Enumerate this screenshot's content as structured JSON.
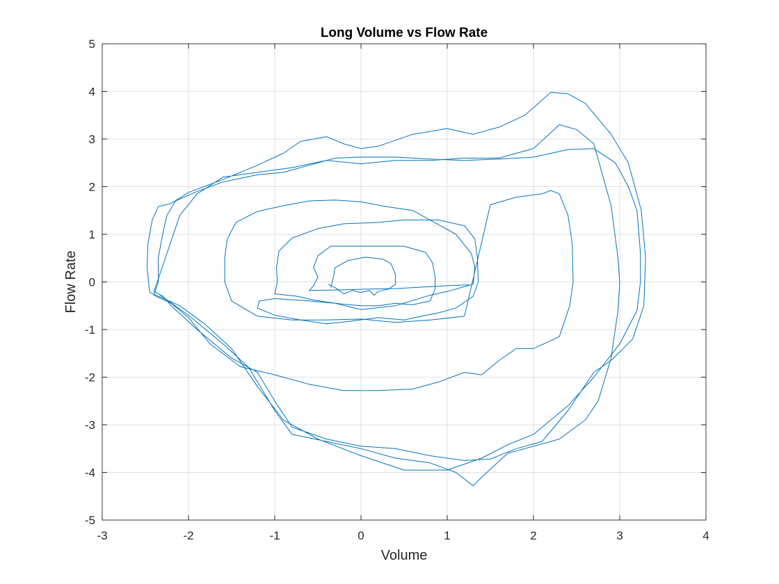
{
  "chart_data": {
    "type": "line",
    "title": "Long Volume vs Flow Rate",
    "xlabel": "Volume",
    "ylabel": "Flow Rate",
    "xlim": [
      -3,
      4
    ],
    "ylim": [
      -5,
      5
    ],
    "xticks": [
      -3,
      -2,
      -1,
      0,
      1,
      2,
      3,
      4
    ],
    "yticks": [
      5,
      4,
      3,
      2,
      1,
      0,
      -1,
      -2,
      -3,
      -4,
      -5
    ],
    "xtick_labels": [
      "-3",
      "-2",
      "-1",
      "0",
      "1",
      "2",
      "3",
      "4"
    ],
    "ytick_labels": [
      "5",
      "4",
      "3",
      "2",
      "1",
      "0",
      "-1",
      "-2",
      "-3",
      "-4",
      "-5"
    ],
    "grid": true,
    "legend": "none",
    "line_color": "#0072BD",
    "series": [
      {
        "points": [
          [
            1.25,
            -0.06
          ],
          [
            1.0,
            -0.08
          ],
          [
            0.7,
            -0.11
          ],
          [
            0.4,
            -0.14
          ],
          [
            0.1,
            -0.15
          ],
          [
            -0.3,
            -0.17
          ],
          [
            -0.6,
            -0.18
          ],
          [
            -0.55,
            -0.08
          ],
          [
            -0.5,
            0.1
          ],
          [
            -0.55,
            0.3
          ],
          [
            -0.5,
            0.55
          ],
          [
            -0.35,
            0.75
          ],
          [
            -0.1,
            0.75
          ],
          [
            0.2,
            0.75
          ],
          [
            0.5,
            0.75
          ],
          [
            0.75,
            0.62
          ],
          [
            0.83,
            0.4
          ],
          [
            0.86,
            0.1
          ],
          [
            0.86,
            -0.15
          ],
          [
            0.8,
            -0.4
          ],
          [
            0.6,
            -0.48
          ],
          [
            0.4,
            -0.45
          ],
          [
            0.2,
            -0.5
          ],
          [
            0.0,
            -0.5
          ],
          [
            -0.3,
            -0.45
          ],
          [
            -0.55,
            -0.38
          ],
          [
            -0.75,
            -0.3
          ],
          [
            -1.0,
            -0.25
          ],
          [
            -0.97,
            0.0
          ],
          [
            -0.98,
            0.3
          ],
          [
            -0.95,
            0.65
          ],
          [
            -0.8,
            0.92
          ],
          [
            -0.5,
            1.12
          ],
          [
            -0.2,
            1.22
          ],
          [
            0.2,
            1.25
          ],
          [
            0.5,
            1.3
          ],
          [
            0.9,
            1.3
          ],
          [
            1.2,
            1.18
          ],
          [
            1.32,
            0.9
          ],
          [
            1.35,
            0.5
          ],
          [
            1.36,
            0.0
          ],
          [
            1.3,
            -0.3
          ],
          [
            1.1,
            -0.55
          ],
          [
            0.9,
            -0.65
          ],
          [
            0.7,
            -0.72
          ],
          [
            0.5,
            -0.8
          ],
          [
            0.2,
            -0.75
          ],
          [
            -0.1,
            -0.82
          ],
          [
            -0.4,
            -0.88
          ],
          [
            -0.7,
            -0.8
          ],
          [
            -1.0,
            -0.7
          ],
          [
            -1.2,
            -0.55
          ],
          [
            -1.18,
            -0.4
          ],
          [
            -1.0,
            -0.35
          ],
          [
            -0.6,
            -0.4
          ],
          [
            -0.3,
            -0.45
          ],
          [
            0.0,
            -0.58
          ],
          [
            0.4,
            -0.5
          ],
          [
            0.8,
            -0.28
          ],
          [
            1.0,
            -0.2
          ],
          [
            1.3,
            -0.05
          ],
          [
            1.32,
            0.3
          ],
          [
            1.28,
            0.6
          ],
          [
            1.1,
            1.0
          ],
          [
            0.9,
            1.2
          ],
          [
            0.6,
            1.5
          ],
          [
            0.3,
            1.58
          ],
          [
            0.0,
            1.68
          ],
          [
            -0.3,
            1.72
          ],
          [
            -0.6,
            1.7
          ],
          [
            -0.9,
            1.6
          ],
          [
            -1.2,
            1.48
          ],
          [
            -1.45,
            1.25
          ],
          [
            -1.55,
            0.9
          ],
          [
            -1.58,
            0.5
          ],
          [
            -1.58,
            0.0
          ],
          [
            -1.5,
            -0.4
          ],
          [
            -1.2,
            -0.72
          ],
          [
            -0.8,
            -0.8
          ],
          [
            -0.4,
            -0.8
          ],
          [
            0.0,
            -0.78
          ],
          [
            0.4,
            -0.85
          ],
          [
            0.8,
            -0.8
          ],
          [
            1.2,
            -0.72
          ],
          [
            1.5,
            1.62
          ],
          [
            1.8,
            1.78
          ],
          [
            2.1,
            1.85
          ],
          [
            2.2,
            1.92
          ],
          [
            2.3,
            1.85
          ],
          [
            2.4,
            1.4
          ],
          [
            2.45,
            0.8
          ],
          [
            2.46,
            0.0
          ],
          [
            2.42,
            -0.5
          ],
          [
            2.3,
            -1.15
          ],
          [
            2.0,
            -1.4
          ],
          [
            1.8,
            -1.4
          ],
          [
            1.6,
            -1.65
          ],
          [
            1.4,
            -1.95
          ],
          [
            1.2,
            -1.9
          ],
          [
            0.9,
            -2.1
          ],
          [
            0.6,
            -2.25
          ],
          [
            0.2,
            -2.28
          ],
          [
            -0.2,
            -2.28
          ],
          [
            -0.6,
            -2.15
          ],
          [
            -1.0,
            -1.95
          ],
          [
            -1.4,
            -1.78
          ],
          [
            -1.75,
            -1.3
          ],
          [
            -2.0,
            -0.75
          ],
          [
            -2.2,
            -0.45
          ],
          [
            -2.4,
            -0.28
          ],
          [
            -2.35,
            0.0
          ],
          [
            -2.35,
            0.5
          ],
          [
            -2.3,
            1.0
          ],
          [
            -2.25,
            1.4
          ],
          [
            -2.15,
            1.7
          ],
          [
            -1.9,
            1.9
          ],
          [
            -1.6,
            2.1
          ],
          [
            -1.2,
            2.25
          ],
          [
            -0.9,
            2.3
          ],
          [
            -0.6,
            2.45
          ],
          [
            -0.3,
            2.6
          ],
          [
            0.0,
            2.62
          ],
          [
            0.4,
            2.62
          ],
          [
            0.8,
            2.58
          ],
          [
            1.2,
            2.55
          ],
          [
            1.6,
            2.58
          ],
          [
            2.0,
            2.62
          ],
          [
            2.4,
            2.78
          ],
          [
            2.7,
            2.8
          ],
          [
            2.95,
            2.5
          ],
          [
            3.1,
            2.0
          ],
          [
            3.2,
            1.5
          ],
          [
            3.24,
            0.6
          ],
          [
            3.24,
            0.0
          ],
          [
            3.2,
            -0.6
          ],
          [
            3.0,
            -1.3
          ],
          [
            2.7,
            -2.0
          ],
          [
            2.4,
            -2.6
          ],
          [
            2.0,
            -3.2
          ],
          [
            1.7,
            -3.42
          ],
          [
            1.4,
            -3.7
          ],
          [
            1.0,
            -3.95
          ],
          [
            0.5,
            -3.95
          ],
          [
            0.0,
            -3.65
          ],
          [
            -0.5,
            -3.3
          ],
          [
            -0.9,
            -2.9
          ],
          [
            -1.2,
            -2.2
          ],
          [
            -1.5,
            -1.4
          ],
          [
            -1.8,
            -0.9
          ],
          [
            -2.1,
            -0.5
          ],
          [
            -2.45,
            -0.22
          ],
          [
            -2.48,
            0.3
          ],
          [
            -2.47,
            0.8
          ],
          [
            -2.42,
            1.3
          ],
          [
            -2.35,
            1.58
          ],
          [
            -2.2,
            1.65
          ],
          [
            -2.0,
            1.88
          ],
          [
            -1.6,
            2.15
          ],
          [
            -1.2,
            2.45
          ],
          [
            -0.9,
            2.7
          ],
          [
            -0.7,
            2.95
          ],
          [
            -0.4,
            3.05
          ],
          [
            -0.2,
            2.9
          ],
          [
            0.0,
            2.8
          ],
          [
            0.2,
            2.85
          ],
          [
            0.6,
            3.1
          ],
          [
            1.0,
            3.22
          ],
          [
            1.3,
            3.1
          ],
          [
            1.6,
            3.25
          ],
          [
            1.9,
            3.5
          ],
          [
            2.2,
            3.98
          ],
          [
            2.4,
            3.95
          ],
          [
            2.6,
            3.75
          ],
          [
            2.9,
            3.1
          ],
          [
            3.1,
            2.5
          ],
          [
            3.25,
            1.5
          ],
          [
            3.3,
            0.5
          ],
          [
            3.28,
            -0.5
          ],
          [
            3.15,
            -1.2
          ],
          [
            2.9,
            -1.65
          ],
          [
            2.7,
            -1.9
          ],
          [
            2.4,
            -2.7
          ],
          [
            2.1,
            -3.35
          ],
          [
            1.8,
            -3.5
          ],
          [
            1.5,
            -3.72
          ],
          [
            1.2,
            -3.75
          ],
          [
            0.8,
            -3.65
          ],
          [
            0.4,
            -3.5
          ],
          [
            0.0,
            -3.45
          ],
          [
            -0.4,
            -3.3
          ],
          [
            -0.8,
            -3.05
          ],
          [
            -1.0,
            -2.5
          ],
          [
            -1.2,
            -1.9
          ],
          [
            -1.5,
            -1.6
          ],
          [
            -1.9,
            -1.0
          ],
          [
            -2.2,
            -0.5
          ],
          [
            -2.3,
            -0.3
          ],
          [
            -2.4,
            -0.2
          ],
          [
            -2.25,
            0.6
          ],
          [
            -2.1,
            1.4
          ],
          [
            -1.9,
            1.85
          ],
          [
            -1.6,
            2.2
          ],
          [
            -1.2,
            2.3
          ],
          [
            -0.8,
            2.4
          ],
          [
            -0.4,
            2.55
          ],
          [
            0.0,
            2.48
          ],
          [
            0.4,
            2.55
          ],
          [
            0.8,
            2.55
          ],
          [
            1.2,
            2.6
          ],
          [
            1.6,
            2.6
          ],
          [
            2.0,
            2.8
          ],
          [
            2.3,
            3.3
          ],
          [
            2.5,
            3.2
          ],
          [
            2.7,
            2.9
          ],
          [
            2.9,
            1.6
          ],
          [
            2.98,
            0.5
          ],
          [
            3.0,
            0.0
          ],
          [
            2.98,
            -0.6
          ],
          [
            2.9,
            -1.6
          ],
          [
            2.75,
            -2.5
          ],
          [
            2.6,
            -2.9
          ],
          [
            2.3,
            -3.3
          ],
          [
            2.0,
            -3.45
          ],
          [
            1.7,
            -3.6
          ],
          [
            1.4,
            -4.1
          ],
          [
            1.3,
            -4.28
          ],
          [
            1.1,
            -4.0
          ],
          [
            0.8,
            -3.8
          ],
          [
            0.4,
            -3.7
          ],
          [
            0.0,
            -3.5
          ],
          [
            -0.4,
            -3.35
          ],
          [
            -0.8,
            -3.2
          ],
          [
            -1.0,
            -2.7
          ],
          [
            -1.3,
            -1.8
          ],
          [
            -1.6,
            -1.3
          ],
          [
            -2.0,
            -0.7
          ],
          [
            -2.35,
            -0.25
          ]
        ]
      },
      {
        "points": [
          [
            -0.35,
            -0.12
          ],
          [
            -0.32,
            0.1
          ],
          [
            -0.3,
            0.3
          ],
          [
            -0.15,
            0.45
          ],
          [
            0.05,
            0.52
          ],
          [
            0.25,
            0.48
          ],
          [
            0.35,
            0.38
          ],
          [
            0.4,
            0.15
          ],
          [
            0.4,
            -0.05
          ],
          [
            0.32,
            -0.15
          ],
          [
            0.2,
            -0.2
          ],
          [
            0.15,
            -0.28
          ],
          [
            0.1,
            -0.18
          ],
          [
            0.0,
            -0.22
          ],
          [
            -0.1,
            -0.18
          ],
          [
            -0.2,
            -0.25
          ],
          [
            -0.3,
            -0.12
          ],
          [
            -0.38,
            -0.05
          ]
        ]
      }
    ]
  }
}
